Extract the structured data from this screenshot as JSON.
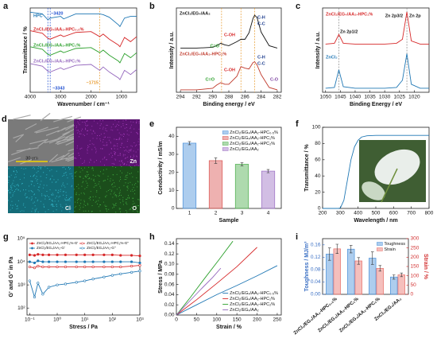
{
  "chart_data": [
    {
      "type": "line",
      "panel": "a",
      "xlabel": "Wavenumber / cm⁻¹",
      "ylabel": "Transmittance / %",
      "x": [
        4000,
        3600,
        3420,
        3343,
        3000,
        2900,
        2500,
        2000,
        1715,
        1600,
        1400,
        1100,
        1050,
        900,
        700,
        500
      ],
      "xlim": [
        4000,
        500
      ],
      "xticks": [
        4000,
        3000,
        2000,
        1000
      ],
      "ylim": [
        0,
        10
      ],
      "series": [
        {
          "name": "HPC",
          "color": "#1f77b4",
          "values": [
            9.5,
            9.3,
            8.6,
            8.8,
            9.0,
            8.7,
            9.3,
            9.3,
            9.3,
            9.2,
            8.9,
            8.0,
            7.8,
            8.8,
            9.0,
            9.0
          ]
        },
        {
          "name": "ZnCl₂/EG₄/AA₂-HPC₀.₅%",
          "color": "#d62728",
          "values": [
            7.3,
            7.0,
            6.4,
            6.3,
            6.8,
            6.6,
            7.1,
            7.2,
            6.6,
            6.9,
            6.3,
            5.6,
            5.4,
            6.5,
            6.0,
            6.6
          ]
        },
        {
          "name": "ZnCl₂/EG₄/AA₂-HPC₁%",
          "color": "#2ca02c",
          "values": [
            5.4,
            5.1,
            4.5,
            4.4,
            4.9,
            4.7,
            5.2,
            5.3,
            4.7,
            5.0,
            4.4,
            3.7,
            3.5,
            4.6,
            4.1,
            4.7
          ]
        },
        {
          "name": "ZnCl₂/EG₄/AA₂-HPC₂%",
          "color": "#9467bd",
          "values": [
            3.4,
            3.1,
            2.5,
            2.4,
            2.9,
            2.7,
            3.2,
            3.3,
            2.6,
            3.0,
            2.4,
            1.7,
            1.5,
            2.6,
            2.1,
            2.7
          ]
        }
      ],
      "markers": [
        3420,
        3343,
        1715
      ],
      "marker_colors": [
        "#1f4fd0",
        "#1f4fd0",
        "#e89a2c"
      ],
      "annotations": [
        "~3420",
        "~3343",
        "~1715"
      ],
      "annotation_colors": [
        "#1f4fd0",
        "#1f4fd0",
        "#e89a2c"
      ]
    },
    {
      "type": "line",
      "panel": "b",
      "xlabel": "Binding energy / eV",
      "ylabel": "Intensity / a.u.",
      "x": [
        294,
        292,
        290,
        289.5,
        289,
        288.5,
        288,
        287,
        286.5,
        286,
        285.5,
        285,
        284.8,
        284.5,
        284,
        283,
        282
      ],
      "xlim": [
        294.5,
        281.5
      ],
      "xticks": [
        294,
        292,
        290,
        288,
        286,
        284,
        282
      ],
      "ylim": [
        0,
        10.5
      ],
      "series": [
        {
          "name": "ZnCl₂/EG₄/AA₂",
          "color": "#111111",
          "values": [
            5.5,
            5.5,
            5.6,
            5.8,
            6.1,
            5.9,
            5.8,
            6.3,
            6.6,
            6.6,
            7.4,
            9.2,
            9.6,
            9.3,
            7.5,
            5.8,
            5.5
          ]
        },
        {
          "name": "ZnCl₂/EG₄/AA₂-HPC₁%",
          "color": "#c0392b",
          "values": [
            0.3,
            0.3,
            0.5,
            0.9,
            1.2,
            1.0,
            1.0,
            2.0,
            3.2,
            3.0,
            2.9,
            3.7,
            3.8,
            3.4,
            2.2,
            0.6,
            0.3
          ]
        }
      ],
      "markers": [
        288.9,
        286.5,
        284.8
      ],
      "marker_colors": [
        "#e89a2c",
        "#e89a2c",
        "#e89a2c"
      ],
      "annotations": [
        "C-H",
        "C-C",
        "C-OH",
        "C=O",
        "C-H",
        "C-C",
        "C-OH",
        "C=O",
        "C-O"
      ],
      "annotation_colors": [
        "#1f3f8f",
        "#1f3f8f",
        "#d62728",
        "#2ca02c",
        "#1f3f8f",
        "#1f3f8f",
        "#d62728",
        "#2ca02c",
        "#7b3fa0"
      ]
    },
    {
      "type": "line",
      "panel": "c",
      "xlabel": "Binding Energy / eV",
      "ylabel": "Intensity / a.u.",
      "x": [
        1050,
        1047,
        1045.5,
        1044,
        1040,
        1035,
        1030,
        1026,
        1024,
        1022.5,
        1021,
        1018,
        1015
      ],
      "xlim": [
        1051,
        1015
      ],
      "xticks": [
        1050,
        1045,
        1040,
        1035,
        1030,
        1025,
        1020
      ],
      "ylim": [
        0,
        10.5
      ],
      "series": [
        {
          "name": "ZnCl₂/EG₄/AA₂-HPC₁%",
          "color": "#d62728",
          "values": [
            6.0,
            6.1,
            7.2,
            6.1,
            6.0,
            6.0,
            6.0,
            6.1,
            6.6,
            10.0,
            6.4,
            6.0,
            6.0
          ]
        },
        {
          "name": "ZnCl₂",
          "color": "#1f77b4",
          "values": [
            0.5,
            0.6,
            2.8,
            0.7,
            0.5,
            0.5,
            0.5,
            0.6,
            1.5,
            4.8,
            1.0,
            0.5,
            0.5
          ]
        }
      ],
      "markers": [
        1045.5,
        1022.5
      ],
      "marker_colors": [
        "#888888",
        "#888888"
      ],
      "annotations": [
        "Zn 2p1/2",
        "Zn 2p3/2",
        "Zn 2p"
      ],
      "annotation_colors": [
        "#111111",
        "#111111",
        "#111111"
      ]
    },
    {
      "type": "image",
      "panel": "d",
      "scale_bar": "30 μm",
      "labels": [
        "Zn",
        "Cl",
        "O"
      ]
    },
    {
      "type": "bar",
      "panel": "e",
      "xlabel": "Sample",
      "ylabel": "Conductivity / mS/m",
      "categories": [
        "1",
        "2",
        "3",
        "4"
      ],
      "values": [
        36.2,
        26.5,
        24.5,
        20.7
      ],
      "errors": [
        0.9,
        1.5,
        0.8,
        0.9
      ],
      "colors": [
        "#4a90d9",
        "#d9534f",
        "#4cae4c",
        "#9b6fc4"
      ],
      "legend": [
        "ZnCl₂/EG₄/AA₂-HPC₀.₅%",
        "ZnCl₂/EG₄/AA₂-HPC₁%",
        "ZnCl₂/EG₄/AA₂-HPC₂%",
        "ZnCl₂/EG₄/AA₂"
      ],
      "legend_corner": "upper right",
      "ylim": [
        0,
        45
      ],
      "yticks": [
        0,
        10,
        20,
        30,
        40
      ]
    },
    {
      "type": "line",
      "panel": "f",
      "xlabel": "Wavelength / nm",
      "ylabel": "Transmittance / %",
      "x": [
        200,
        250,
        290,
        300,
        320,
        340,
        360,
        380,
        400,
        420,
        450,
        500,
        600,
        700,
        800
      ],
      "values": [
        0,
        0,
        0,
        0.5,
        10,
        35,
        60,
        76,
        84,
        88,
        89.5,
        90,
        90,
        90,
        90
      ],
      "color": "#1f77b4",
      "xlim": [
        200,
        800
      ],
      "xticks": [
        200,
        300,
        400,
        500,
        600,
        700,
        800
      ],
      "ylim": [
        0,
        100
      ],
      "yticks": [
        0,
        20,
        40,
        60,
        80,
        100
      ]
    },
    {
      "type": "line",
      "panel": "g",
      "xlabel": "Stress / Pa",
      "ylabel": "G' and G'' in Pa",
      "xlog": true,
      "ylog": true,
      "x": [
        0.1,
        0.15,
        0.2,
        0.3,
        0.5,
        1,
        2,
        5,
        10,
        20,
        50,
        100,
        200,
        500,
        1000
      ],
      "xlim": [
        0.08,
        1000
      ],
      "xticks": [
        {
          "value": 0.1,
          "label": "10⁻¹"
        },
        {
          "value": 1,
          "label": "10⁰"
        },
        {
          "value": 10,
          "label": "10¹"
        },
        {
          "value": 100,
          "label": "10²"
        },
        {
          "value": 1000,
          "label": "10³"
        }
      ],
      "ylim": [
        50,
        100000
      ],
      "yticks": [
        {
          "value": 100,
          "label": "10²"
        },
        {
          "value": 1000,
          "label": "10³"
        },
        {
          "value": 10000,
          "label": "10⁴"
        },
        {
          "value": 100000,
          "label": "10⁵"
        }
      ],
      "legend_corner": "upper left",
      "legend_columns": 2,
      "series": [
        {
          "name": "ZnCl₂/EG₄/AA₂-HPC₁%-G'",
          "color": "#d62728",
          "marker": "filled",
          "values": [
            20000,
            19000,
            21000,
            20000,
            20000,
            20000,
            20000,
            20000,
            20000,
            20000,
            20000,
            20000,
            19000,
            19000,
            18000
          ]
        },
        {
          "name": "ZnCl₂/EG₄/AA₂-HPC₁%-G''",
          "color": "#d62728",
          "marker": "open",
          "values": [
            6000,
            5500,
            6500,
            6000,
            6000,
            6000,
            6000,
            6000,
            6000,
            6000,
            6000,
            6000,
            6000,
            6500,
            7000
          ]
        },
        {
          "name": "ZnCl₂/EG₄/AA₂-G'",
          "color": "#1f77b4",
          "marker": "filled",
          "values": [
            10000,
            9000,
            11000,
            10000,
            10000,
            10000,
            10000,
            10000,
            10000,
            10000,
            10000,
            10000,
            10000,
            10000,
            9000
          ]
        },
        {
          "name": "ZnCl₂/EG₄/AA₂-G''",
          "color": "#1f77b4",
          "marker": "open",
          "values": [
            1500,
            300,
            1200,
            400,
            800,
            1000,
            1100,
            1300,
            1500,
            1800,
            2200,
            2600,
            3000,
            3500,
            4000
          ]
        }
      ]
    },
    {
      "type": "line",
      "panel": "h",
      "xlabel": "Strain / %",
      "ylabel": "Stress / MPa",
      "xlim": [
        0,
        260
      ],
      "xticks": [
        0,
        50,
        100,
        150,
        200,
        250
      ],
      "ylim": [
        0,
        0.15
      ],
      "yticks": [
        {
          "value": 0,
          "label": "0.00"
        },
        0.02,
        0.04,
        0.06,
        0.08,
        {
          "value": 0.1,
          "label": "0.10"
        },
        0.12,
        0.14
      ],
      "legend_corner": "lower right",
      "series": [
        {
          "name": "ZnCl₂/EG₄/AA₂-HPC₀.₅%",
          "color": "#1f77b4",
          "x": [
            0,
            50,
            100,
            150,
            200,
            250
          ],
          "values": [
            0,
            0.02,
            0.04,
            0.058,
            0.077,
            0.097
          ]
        },
        {
          "name": "ZnCl₂/EG₄/AA₂-HPC₁%",
          "color": "#d62728",
          "x": [
            0,
            50,
            100,
            150,
            200
          ],
          "values": [
            0,
            0.03,
            0.062,
            0.095,
            0.133
          ]
        },
        {
          "name": "ZnCl₂/EG₄/AA₂-HPC₂%",
          "color": "#2ca02c",
          "x": [
            0,
            35,
            70,
            105,
            140
          ],
          "values": [
            0,
            0.035,
            0.072,
            0.108,
            0.145
          ]
        },
        {
          "name": "ZnCl₂/EG₄/AA₂",
          "color": "#9467bd",
          "x": [
            0,
            30,
            60,
            90,
            110
          ],
          "values": [
            0,
            0.025,
            0.05,
            0.074,
            0.092
          ]
        }
      ]
    },
    {
      "type": "bar",
      "panel": "i",
      "ylabel": "Toughness / MJ/m³",
      "y2label": "Strain / %",
      "categories": [
        "ZnCl₂/EG₄/AA₂-HPC₀.₅%",
        "ZnCl₂/EG₄/AA₂-HPC₁%",
        "ZnCl₂/EG₄/AA₂-HPC₂%",
        "ZnCl₂/EG₄/AA₂"
      ],
      "xtick_rotation": -40,
      "legend_corner": "upper right",
      "ylim": [
        0,
        0.18
      ],
      "yticks": [
        {
          "value": 0,
          "label": "0.00"
        },
        0.04,
        0.08,
        0.12,
        0.16
      ],
      "y_color": "#3a6fc4",
      "y2lim": [
        0,
        300
      ],
      "y2ticks": [
        0,
        50,
        100,
        150,
        200,
        250,
        300
      ],
      "y2_color": "#d33333",
      "series": [
        {
          "name": "Toughness",
          "color": "#4a90d9",
          "values": [
            0.13,
            0.146,
            0.117,
            0.056
          ],
          "errors": [
            0.02,
            0.012,
            0.02,
            0.007
          ]
        },
        {
          "name": "Strain",
          "color": "#e8706a",
          "axis": "y2",
          "values": [
            245,
            180,
            140,
            105
          ],
          "errors": [
            25,
            18,
            15,
            10
          ]
        }
      ]
    }
  ]
}
